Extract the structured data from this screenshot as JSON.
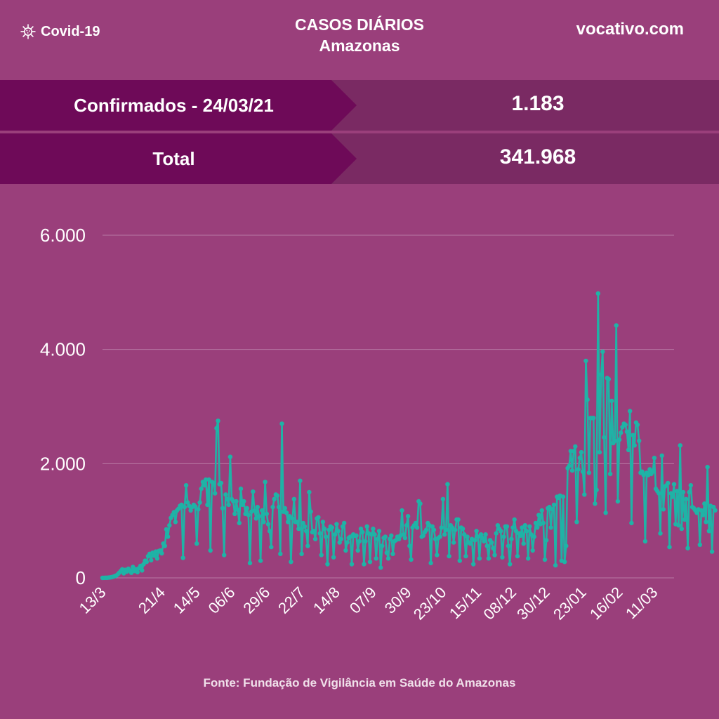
{
  "header": {
    "brand": "Covid-19",
    "brand_icon": "virus-icon",
    "title": "CASOS DIÁRIOS",
    "subtitle": "Amazonas",
    "site": "vocativo.com"
  },
  "stats": {
    "confirmed_label": "Confirmados - 24/03/21",
    "confirmed_value": "1.183",
    "total_label": "Total",
    "total_value": "341.968"
  },
  "colors": {
    "background": "#9a3f7b",
    "label_band": "#6e0a58",
    "value_band": "#7a2a63",
    "line": "#1fb3a6",
    "grid": "#b879a4"
  },
  "chart_data": {
    "type": "line",
    "ylim": [
      0,
      6000
    ],
    "y_ticks": [
      {
        "value": 0,
        "label": "0"
      },
      {
        "value": 2000,
        "label": "2.000"
      },
      {
        "value": 4000,
        "label": "4.000"
      },
      {
        "value": 6000,
        "label": "6.000"
      }
    ],
    "x_ticks": [
      {
        "day": 0,
        "label": "13/3"
      },
      {
        "day": 39,
        "label": "21/4"
      },
      {
        "day": 62,
        "label": "14/5"
      },
      {
        "day": 85,
        "label": "06/6"
      },
      {
        "day": 108,
        "label": "29/6"
      },
      {
        "day": 131,
        "label": "22/7"
      },
      {
        "day": 154,
        "label": "14/8"
      },
      {
        "day": 178,
        "label": "07/9"
      },
      {
        "day": 201,
        "label": "30/9"
      },
      {
        "day": 224,
        "label": "23/10"
      },
      {
        "day": 247,
        "label": "15/11"
      },
      {
        "day": 270,
        "label": "08/12"
      },
      {
        "day": 292,
        "label": "30/12"
      },
      {
        "day": 316,
        "label": "23/01"
      },
      {
        "day": 340,
        "label": "16/02"
      },
      {
        "day": 363,
        "label": "11/03"
      }
    ],
    "x_days": 377,
    "series": [
      {
        "values": [
          0,
          1,
          2,
          3,
          5,
          8,
          12,
          20,
          30,
          40,
          60,
          90,
          120,
          150,
          80,
          140,
          110,
          160,
          130,
          90,
          190,
          120,
          150,
          100,
          170,
          210,
          130,
          240,
          300,
          280,
          380,
          420,
          310,
          440,
          390,
          460,
          340,
          470,
          480,
          430,
          600,
          560,
          850,
          720,
          920,
          1050,
          1100,
          1150,
          980,
          1180,
          1210,
          1260,
          1280,
          350,
          1240,
          1620,
          1320,
          1260,
          1180,
          1240,
          1280,
          1250,
          600,
          1200,
          1320,
          1560,
          1680,
          1620,
          1720,
          1280,
          1720,
          480,
          1680,
          1660,
          1480,
          2620,
          2750,
          1640,
          1660,
          1220,
          400,
          1460,
          1380,
          1280,
          2120,
          1380,
          1340,
          1120,
          1340,
          1190,
          960,
          1560,
          1280,
          1340,
          1120,
          1220,
          1100,
          260,
          1160,
          1510,
          1180,
          1040,
          1240,
          1080,
          300,
          1180,
          980,
          1680,
          1120,
          940,
          820,
          540,
          1240,
          1380,
          1460,
          1440,
          1240,
          420,
          2700,
          1160,
          1220,
          1140,
          980,
          1080,
          280,
          1040,
          1380,
          980,
          980,
          860,
          1700,
          420,
          960,
          900,
          820,
          560,
          1500,
          1160,
          800,
          820,
          680,
          1040,
          1060,
          780,
          400,
          980,
          860,
          720,
          240,
          840,
          900,
          880,
          360,
          760,
          940,
          820,
          620,
          680,
          900,
          960,
          480,
          620,
          700,
          720,
          240,
          760,
          740,
          740,
          480,
          640,
          860,
          800,
          240,
          640,
          900,
          780,
          280,
          760,
          860,
          760,
          340,
          680,
          820,
          180,
          560,
          700,
          720,
          440,
          340,
          680,
          740,
          420,
          640,
          660,
          720,
          680,
          740,
          1180,
          760,
          700,
          920,
          1080,
          560,
          320,
          880,
          920,
          960,
          880,
          1340,
          1300,
          720,
          740,
          800,
          840,
          960,
          920,
          260,
          900,
          840,
          680,
          400,
          700,
          720,
          880,
          1380,
          760,
          840,
          1640,
          380,
          920,
          880,
          620,
          840,
          1020,
          1020,
          300,
          880,
          860,
          760,
          380,
          720,
          620,
          600,
          680,
          240,
          660,
          820,
          720,
          340,
          760,
          700,
          640,
          760,
          560,
          340,
          660,
          620,
          520,
          400,
          780,
          920,
          860,
          820,
          360,
          720,
          900,
          900,
          560,
          240,
          680,
          880,
          1020,
          820,
          380,
          780,
          740,
          880,
          600,
          920,
          820,
          340,
          900,
          760,
          480,
          720,
          960,
          880,
          1100,
          940,
          1180,
          960,
          320,
          660,
          1220,
          1240,
          880,
          1200,
          1280,
          220,
          1420,
          1400,
          1440,
          300,
          1420,
          280,
          560,
          1920,
          1960,
          2220,
          1880,
          2220,
          2300,
          980,
          1900,
          2100,
          2200,
          1860,
          1460,
          3800,
          3120,
          1840,
          2800,
          2800,
          2800,
          1300,
          1540,
          4980,
          2200,
          3560,
          3960,
          2460,
          1140,
          3500,
          3480,
          1820,
          3100,
          2360,
          2400,
          4420,
          1340,
          2420,
          2540,
          2640,
          2700,
          2680,
          2560,
          2240,
          2920,
          960,
          2500,
          2320,
          2720,
          2680,
          2400,
          1840,
          1860,
          1800,
          640,
          1840,
          1800,
          1900,
          1820,
          1860,
          2100,
          1560,
          1520,
          1480,
          780,
          2140,
          1200,
          1600,
          1620,
          1660,
          540,
          1480,
          1420,
          1640,
          940,
          1520,
          920,
          2320,
          860,
          1500,
          1020,
          1380,
          520,
          1500,
          1620,
          1240,
          1220,
          1180,
          1140,
          1200,
          580,
          1180,
          1100,
          1300,
          980,
          1940,
          820,
          1260,
          460,
          1240,
          1183
        ]
      }
    ]
  },
  "footer": {
    "source": "Fonte: Fundação de Vigilância em Saúde do Amazonas"
  }
}
